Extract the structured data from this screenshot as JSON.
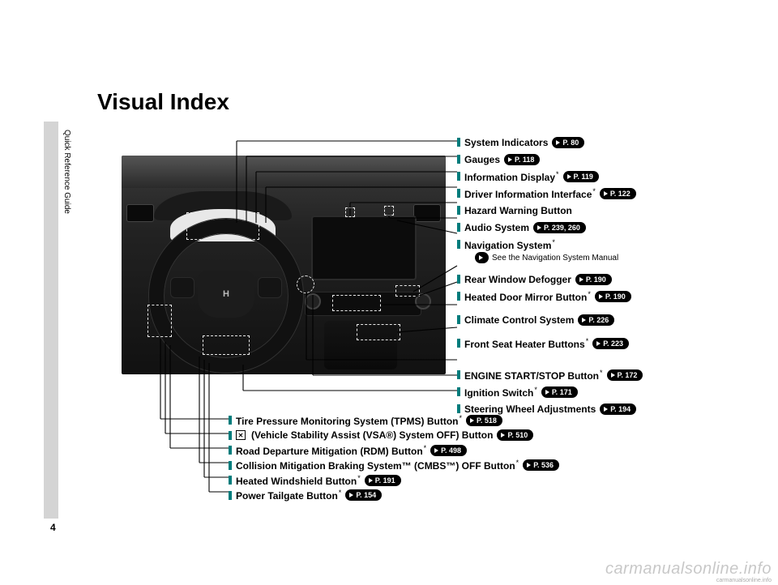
{
  "page": {
    "title": "Visual Index",
    "side_tab": "Quick Reference Guide",
    "number": "4"
  },
  "watermark": {
    "main": "carmanualsonline.info",
    "small": "carmanualsonline.info"
  },
  "pill_prefix": "P.",
  "nav_pill_note": "See the Navigation System Manual",
  "right_labels": [
    {
      "text": "System Indicators",
      "star": false,
      "page": "80"
    },
    {
      "text": "Gauges",
      "star": false,
      "page": "118"
    },
    {
      "text": "Information Display",
      "star": true,
      "page": "119"
    },
    {
      "text": "Driver Information Interface",
      "star": true,
      "page": "122"
    },
    {
      "text": "Hazard Warning Button",
      "star": false,
      "page": null
    },
    {
      "text": "Audio System",
      "star": false,
      "page": "239, 260"
    },
    {
      "text": "Navigation System",
      "star": true,
      "page": null,
      "nav_note": true
    },
    {
      "text": "Rear Window Defogger",
      "star": false,
      "page": "190",
      "gap_before": true
    },
    {
      "text": "Heated Door Mirror Button",
      "star": true,
      "page": "190"
    },
    {
      "text": "Climate Control System",
      "star": false,
      "page": "226",
      "gap_before": true
    },
    {
      "text": "Front Seat Heater Buttons",
      "star": true,
      "page": "223",
      "gap_before": true
    },
    {
      "text": "ENGINE START/STOP Button",
      "star": true,
      "page": "172",
      "gap_before": true,
      "big_gap": true
    },
    {
      "text": "Ignition Switch",
      "star": true,
      "page": "171"
    },
    {
      "text": "Steering Wheel Adjustments",
      "star": false,
      "page": "194"
    }
  ],
  "bottom_labels": [
    {
      "text": "Tire Pressure Monitoring System (TPMS) Button",
      "star": true,
      "page": "518"
    },
    {
      "text": "(Vehicle Stability Assist (VSA®) System OFF) Button",
      "star": false,
      "page": "510",
      "vsa_icon": true
    },
    {
      "text": "Road Departure Mitigation (RDM) Button",
      "star": true,
      "page": "498"
    },
    {
      "text": "Collision Mitigation Braking System™ (CMBS™) OFF Button",
      "star": true,
      "page": "536"
    },
    {
      "text": "Heated Windshield Button",
      "star": true,
      "page": "191"
    },
    {
      "text": "Power Tailgate Button",
      "star": true,
      "page": "154"
    }
  ],
  "steering_logo": "H"
}
